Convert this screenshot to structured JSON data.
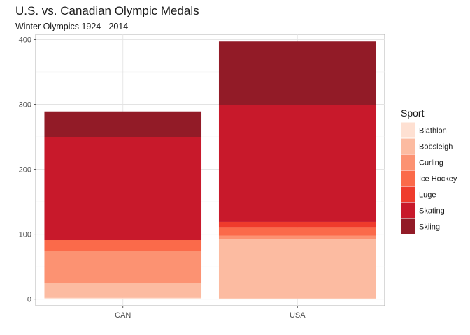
{
  "chart_data": {
    "type": "bar",
    "stacked": true,
    "title": "U.S. vs. Canadian Olympic Medals",
    "subtitle": "Winter Olympics 1924 - 2014",
    "xlabel": "",
    "ylabel": "",
    "categories": [
      "CAN",
      "USA"
    ],
    "ylim": [
      -10,
      408
    ],
    "yticks": [
      0,
      100,
      200,
      300,
      400
    ],
    "grid": true,
    "legend": {
      "title": "Sport",
      "position": "right"
    },
    "series": [
      {
        "name": "Biathlon",
        "color": "#FEE0D2",
        "values": [
          2,
          1
        ]
      },
      {
        "name": "Bobsleigh",
        "color": "#FCBBA1",
        "values": [
          23,
          91
        ]
      },
      {
        "name": "Curling",
        "color": "#FC9272",
        "values": [
          49,
          6
        ]
      },
      {
        "name": "Ice Hockey",
        "color": "#FB6A4A",
        "values": [
          17,
          13
        ]
      },
      {
        "name": "Luge",
        "color": "#EF3B2C",
        "values": [
          0,
          8
        ]
      },
      {
        "name": "Skating",
        "color": "#C8192B",
        "values": [
          158,
          180
        ]
      },
      {
        "name": "Skiing",
        "color": "#921B27",
        "values": [
          40,
          98
        ]
      }
    ]
  }
}
